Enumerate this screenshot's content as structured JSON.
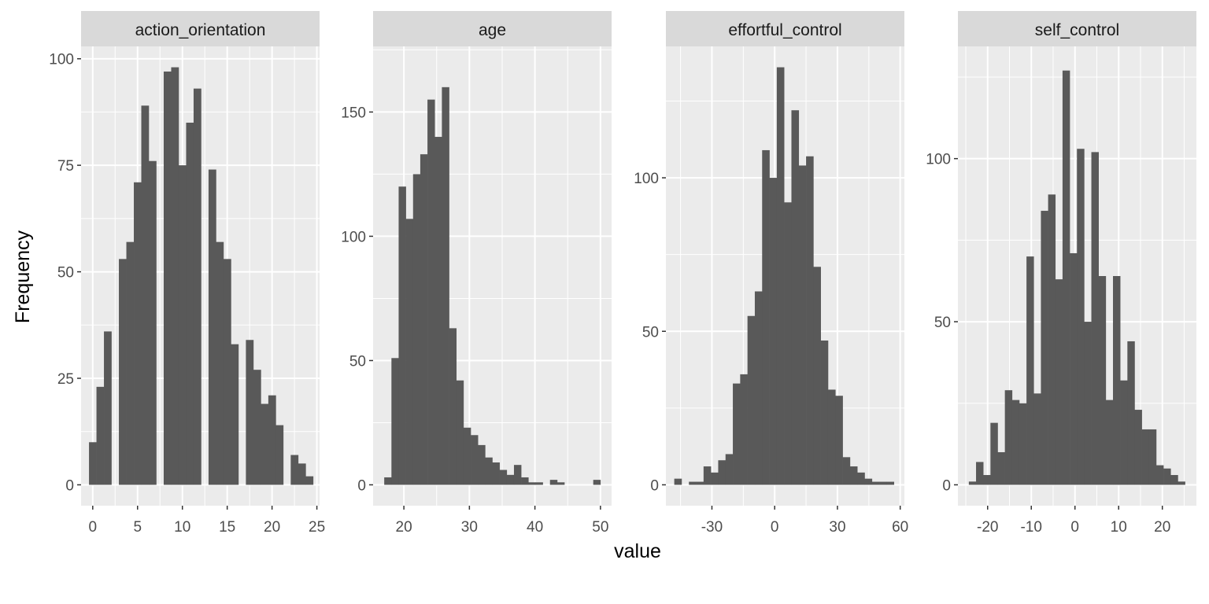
{
  "chart_data": {
    "type": "bar",
    "layout": "facet-histogram",
    "xlabel": "value",
    "ylabel": "Frequency",
    "grid": true,
    "colors": {
      "bar": "#595959",
      "panel": "#ebebeb",
      "strip": "#d9d9d9",
      "grid": "#ffffff"
    },
    "panels": [
      {
        "title": "action_orientation",
        "xlim": [
          -1.3,
          25.3
        ],
        "ylim": [
          -4.9,
          102.9
        ],
        "xticks": [
          0,
          5,
          10,
          15,
          20,
          25
        ],
        "xtick_labels": [
          "0",
          "5",
          "10",
          "15",
          "20",
          "25"
        ],
        "yticks": [
          0,
          25,
          50,
          75,
          100
        ],
        "ytick_labels": [
          "0",
          "25",
          "50",
          "75",
          "100"
        ],
        "bin_start": -0.41667,
        "bin_width": 0.83333,
        "values": [
          10,
          23,
          36,
          0,
          53,
          57,
          71,
          89,
          76,
          0,
          97,
          98,
          75,
          85,
          93,
          0,
          74,
          57,
          53,
          33,
          0,
          34,
          27,
          19,
          21,
          14,
          0,
          7,
          5,
          2
        ]
      },
      {
        "title": "age",
        "xlim": [
          15.3,
          51.7
        ],
        "ylim": [
          -8.4,
          176.4
        ],
        "xticks": [
          20,
          30,
          40,
          50
        ],
        "xtick_labels": [
          "20",
          "30",
          "40",
          "50"
        ],
        "yticks": [
          0,
          50,
          100,
          150
        ],
        "ytick_labels": [
          "0",
          "50",
          "100",
          "150"
        ],
        "bin_start": 17.0,
        "bin_width": 1.1,
        "values": [
          3,
          51,
          120,
          107,
          125,
          133,
          155,
          140,
          160,
          63,
          42,
          23,
          20,
          16,
          11,
          9,
          6,
          4,
          8,
          3,
          1,
          1,
          0,
          2,
          1,
          0,
          0,
          0,
          0,
          2
        ]
      },
      {
        "title": "effortful_control",
        "xlim": [
          -52.0,
          62.0
        ],
        "ylim": [
          -6.8,
          142.8
        ],
        "xticks": [
          -30,
          0,
          30,
          60
        ],
        "xtick_labels": [
          "-30",
          "0",
          "30",
          "60"
        ],
        "yticks": [
          0,
          50,
          100
        ],
        "ytick_labels": [
          "0",
          "50",
          "100"
        ],
        "bin_start": -48.0,
        "bin_width": 3.5,
        "values": [
          2,
          0,
          1,
          1,
          6,
          4,
          8,
          10,
          33,
          36,
          55,
          63,
          109,
          100,
          136,
          92,
          122,
          104,
          107,
          71,
          47,
          31,
          29,
          9,
          6,
          4,
          2,
          1,
          1,
          1
        ]
      },
      {
        "title": "self_control",
        "xlim": [
          -26.8,
          27.8
        ],
        "ylim": [
          -6.4,
          134.4
        ],
        "xticks": [
          -20,
          -10,
          0,
          10,
          20
        ],
        "xtick_labels": [
          "-20",
          "-10",
          "0",
          "10",
          "20"
        ],
        "yticks": [
          0,
          50,
          100
        ],
        "ytick_labels": [
          "0",
          "50",
          "100"
        ],
        "bin_start": -24.3,
        "bin_width": 1.65,
        "values": [
          1,
          7,
          3,
          19,
          10,
          29,
          26,
          25,
          70,
          28,
          84,
          89,
          63,
          127,
          71,
          103,
          50,
          102,
          64,
          26,
          64,
          32,
          44,
          23,
          17,
          17,
          6,
          5,
          3,
          1
        ]
      }
    ]
  }
}
